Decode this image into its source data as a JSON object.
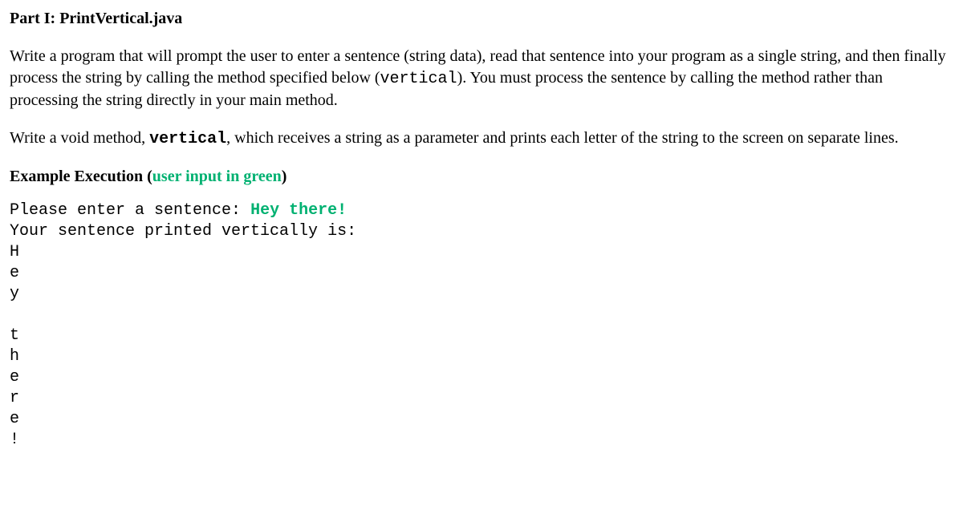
{
  "heading": {
    "prefix": "Part I:  ",
    "title": "PrintVertical.java"
  },
  "para1": {
    "t1": "Write a program that will prompt the user to enter a sentence (string data), read that sentence into your program as a single string, and then finally process the string by calling the method specified below (",
    "code1": "vertical",
    "t2": "). You must process the sentence by calling the method rather than processing the string directly in your main method."
  },
  "para2": {
    "t1": "Write a void method, ",
    "code1": "vertical",
    "t2": ", which receives a string as a parameter and prints each letter of the string to the screen on separate lines."
  },
  "example_label": {
    "text": "Example Execution ",
    "paren_open": "(",
    "green": "user input in green",
    "paren_close": ")"
  },
  "execution": {
    "prompt": "Please enter a sentence: ",
    "user_input": "Hey there!",
    "line2": "Your sentence printed vertically is:",
    "vertical_lines": [
      "H",
      "e",
      "y",
      "",
      "t",
      "h",
      "e",
      "r",
      "e",
      "!"
    ]
  },
  "colors": {
    "text": "#000000",
    "background": "#ffffff",
    "green": "#00b171"
  }
}
